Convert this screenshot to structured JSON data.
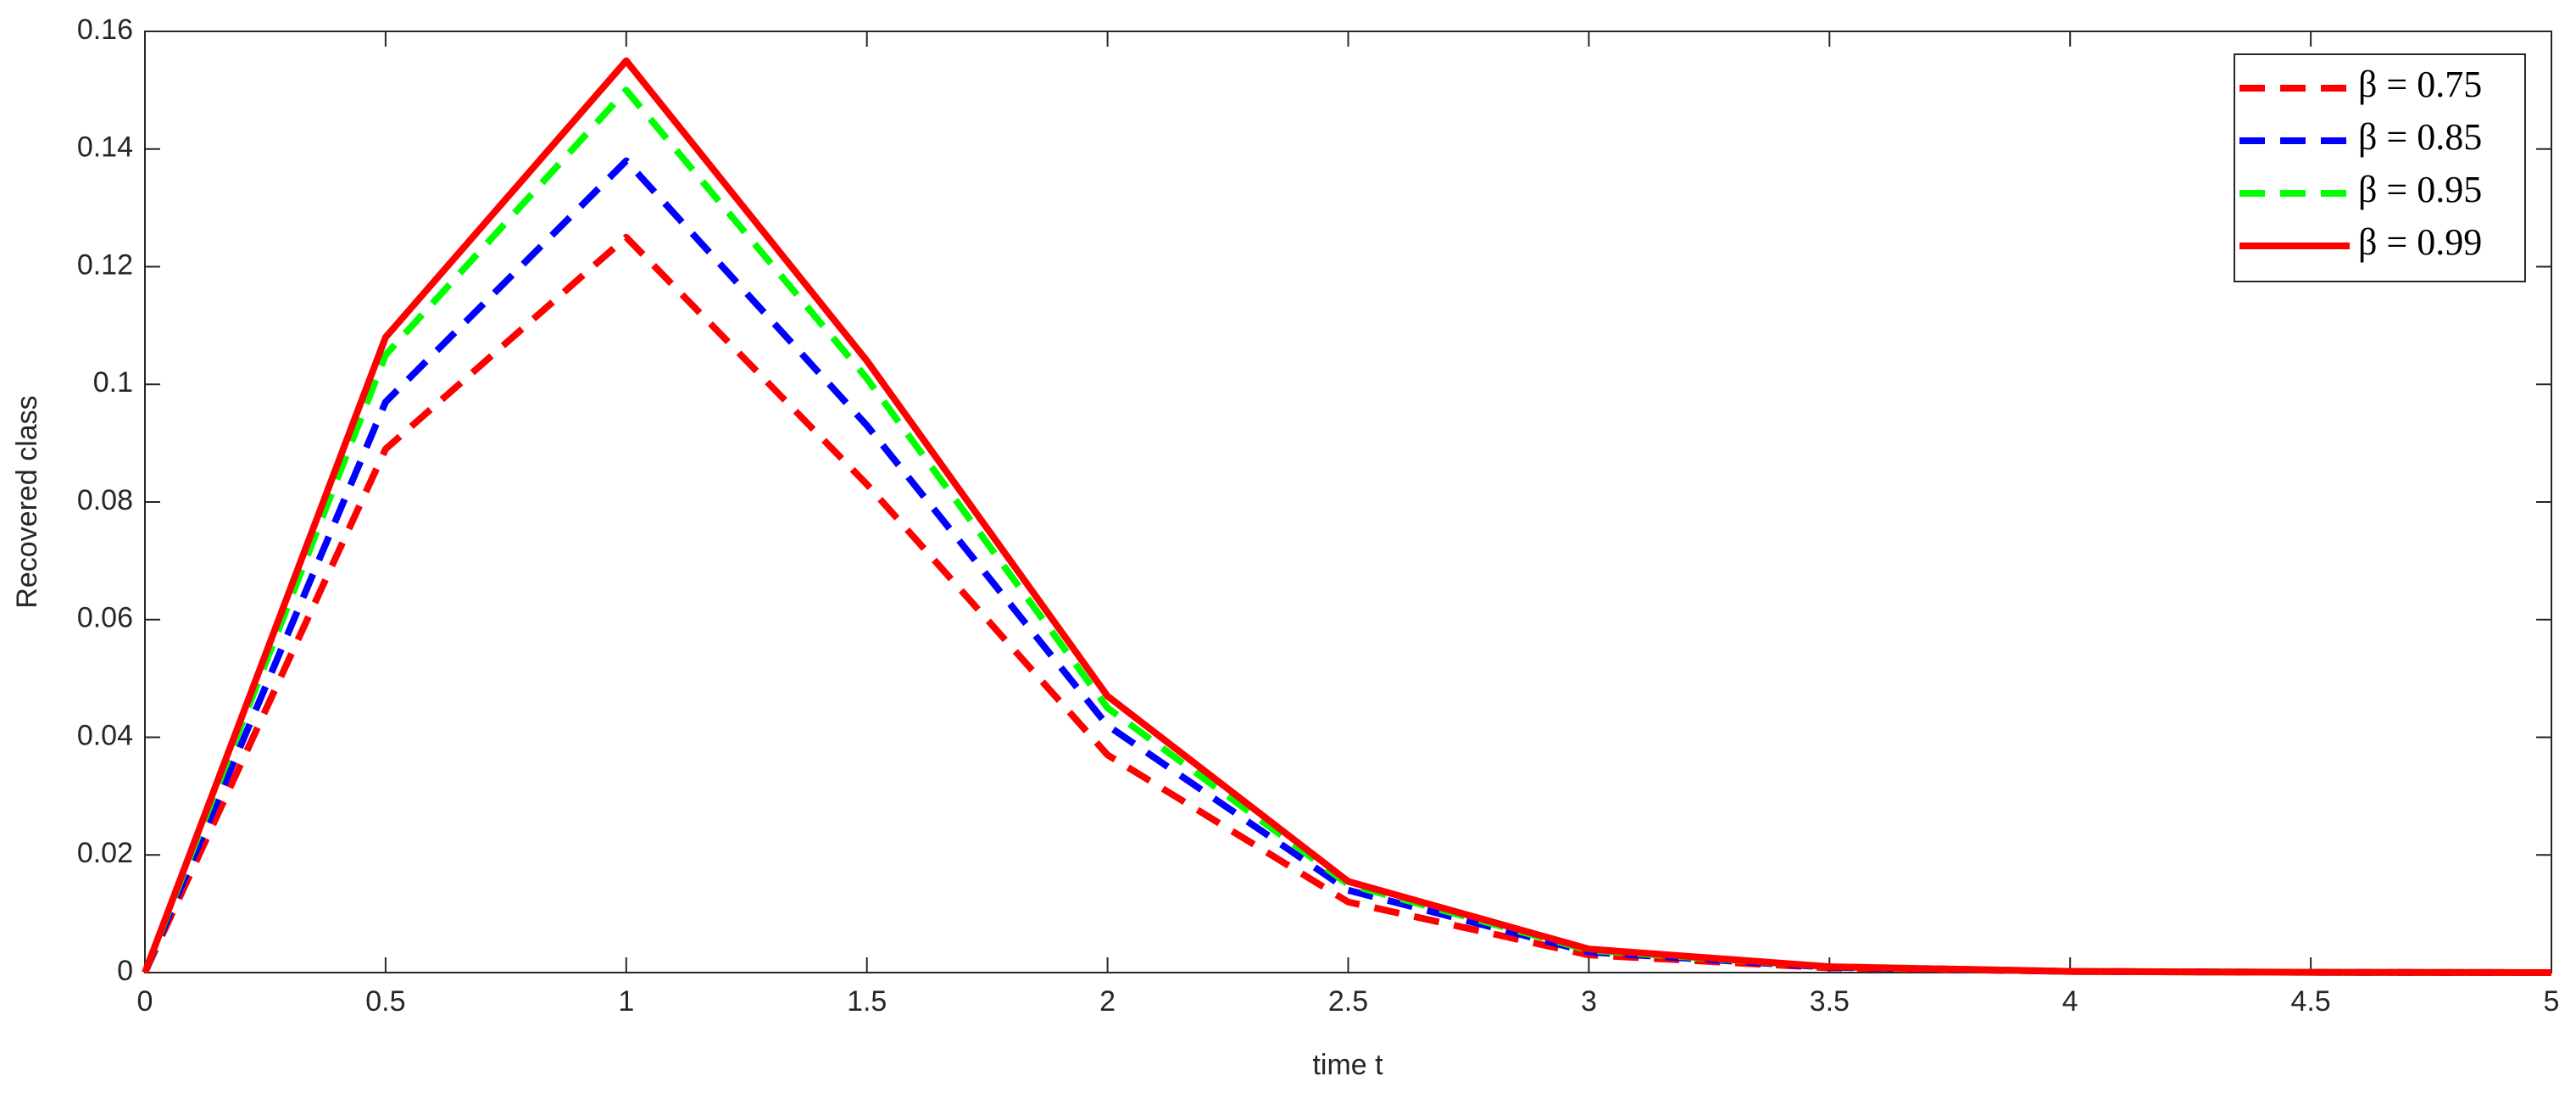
{
  "chart_data": {
    "type": "line",
    "xlabel": "time t",
    "ylabel": "Recovered  class",
    "x": [
      0,
      0.5,
      1,
      1.5,
      2,
      2.5,
      3,
      3.5,
      4,
      4.5,
      5
    ],
    "series": [
      {
        "name": "β = 0.75",
        "color": "#ff0000",
        "dash": "dashed",
        "values": [
          0,
          0.089,
          0.125,
          0.083,
          0.037,
          0.012,
          0.003,
          0.0008,
          0.0002,
          5e-05,
          0
        ]
      },
      {
        "name": "β = 0.85",
        "color": "#0000ff",
        "dash": "dashed",
        "values": [
          0,
          0.097,
          0.138,
          0.093,
          0.042,
          0.014,
          0.0035,
          0.0009,
          0.0002,
          5e-05,
          0
        ]
      },
      {
        "name": "β = 0.95",
        "color": "#00ff00",
        "dash": "dashed",
        "values": [
          0,
          0.105,
          0.15,
          0.101,
          0.045,
          0.015,
          0.0038,
          0.001,
          0.0002,
          5e-05,
          0
        ]
      },
      {
        "name": "β = 0.99",
        "color": "#ff0000",
        "dash": "solid",
        "values": [
          0,
          0.108,
          0.155,
          0.104,
          0.047,
          0.0155,
          0.004,
          0.001,
          0.0002,
          5e-05,
          0
        ]
      }
    ],
    "xlim": [
      0,
      5
    ],
    "xticks": [
      0,
      0.5,
      1,
      1.5,
      2,
      2.5,
      3,
      3.5,
      4,
      4.5,
      5
    ],
    "ylim": [
      0,
      0.16
    ],
    "yticks": [
      0,
      0.02,
      0.04,
      0.06,
      0.08,
      0.1,
      0.12,
      0.14,
      0.16
    ],
    "grid": false,
    "legend": "upper right"
  }
}
